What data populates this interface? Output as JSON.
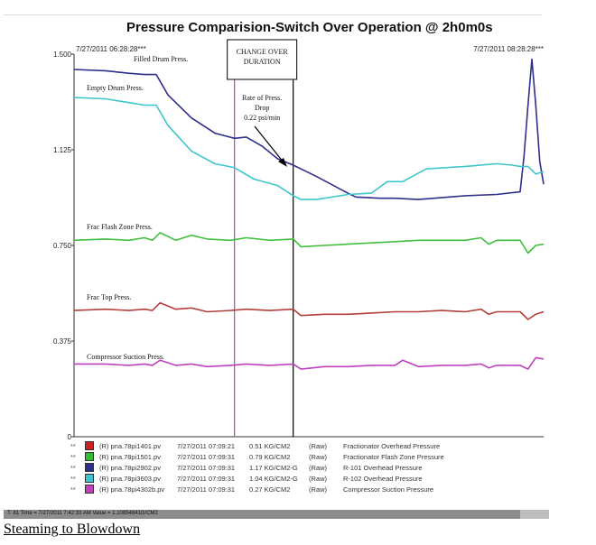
{
  "chart_data": {
    "type": "line",
    "title": "Pressure Comparision-Switch Over Operation  @ 2h0m0s",
    "y_ticks": [
      "1.500",
      "1.125",
      "0.750",
      "0.375",
      "0"
    ],
    "ylim": [
      0,
      1.5
    ],
    "xlim": [
      0,
      120
    ],
    "x_unit": "minutes",
    "grid": false,
    "start_time_label": "7/27/2011  06:28:28***",
    "end_time_label": "7/27/2011  08:28:28***",
    "annotations": {
      "change_over": "CHANGE OVER\nDURATION",
      "rate": "Rate of Press.\nDrop\n0.22 psi/min"
    },
    "vertical_markers": [
      {
        "x": 41,
        "color": "#c040c0"
      },
      {
        "x": 56,
        "color": "#000000"
      }
    ],
    "series": [
      {
        "name": "Filled Drum Press.",
        "color": "#2e2e8c",
        "x": [
          0,
          8,
          14,
          18,
          21,
          24,
          30,
          36,
          41,
          44,
          48,
          52,
          56,
          58,
          62,
          70,
          72,
          78,
          82,
          88,
          92,
          100,
          108,
          114,
          115,
          116,
          117,
          118,
          119,
          120
        ],
        "y": [
          1.44,
          1.435,
          1.425,
          1.42,
          1.42,
          1.34,
          1.25,
          1.19,
          1.17,
          1.175,
          1.14,
          1.09,
          1.065,
          1.05,
          1.02,
          0.955,
          0.94,
          0.935,
          0.935,
          0.93,
          0.935,
          0.945,
          0.95,
          0.96,
          1.1,
          1.3,
          1.48,
          1.3,
          1.08,
          0.99
        ]
      },
      {
        "name": "Empty Drum Press.",
        "color": "#3ec6cc",
        "x": [
          0,
          8,
          14,
          18,
          21,
          24,
          30,
          36,
          41,
          46,
          52,
          56,
          58,
          62,
          70,
          76,
          80,
          84,
          90,
          100,
          108,
          112,
          114,
          116,
          118,
          120
        ],
        "y": [
          1.33,
          1.325,
          1.31,
          1.3,
          1.3,
          1.22,
          1.12,
          1.07,
          1.055,
          1.01,
          0.985,
          0.945,
          0.93,
          0.93,
          0.95,
          0.955,
          1.0,
          1.0,
          1.05,
          1.06,
          1.07,
          1.065,
          1.06,
          1.06,
          1.03,
          1.04
        ]
      },
      {
        "name": "Frac Flash Zone Press.",
        "color": "#3fbf3f",
        "x": [
          0,
          8,
          14,
          18,
          20,
          22,
          26,
          30,
          34,
          40,
          44,
          50,
          56,
          58,
          64,
          70,
          76,
          82,
          88,
          94,
          100,
          104,
          106,
          108,
          110,
          114,
          116,
          118,
          120
        ],
        "y": [
          0.77,
          0.775,
          0.77,
          0.78,
          0.77,
          0.8,
          0.77,
          0.79,
          0.775,
          0.77,
          0.78,
          0.77,
          0.775,
          0.745,
          0.75,
          0.755,
          0.76,
          0.765,
          0.77,
          0.77,
          0.77,
          0.78,
          0.755,
          0.77,
          0.77,
          0.77,
          0.72,
          0.75,
          0.755
        ]
      },
      {
        "name": "Frac Top Press.",
        "color": "#b3403a",
        "x": [
          0,
          8,
          14,
          18,
          20,
          22,
          26,
          30,
          34,
          40,
          44,
          50,
          56,
          58,
          64,
          70,
          76,
          82,
          88,
          94,
          100,
          104,
          106,
          108,
          110,
          114,
          116,
          118,
          120
        ],
        "y": [
          0.495,
          0.5,
          0.495,
          0.5,
          0.495,
          0.525,
          0.5,
          0.505,
          0.49,
          0.495,
          0.5,
          0.495,
          0.5,
          0.475,
          0.48,
          0.48,
          0.485,
          0.49,
          0.49,
          0.495,
          0.49,
          0.5,
          0.48,
          0.49,
          0.49,
          0.49,
          0.46,
          0.48,
          0.49
        ]
      },
      {
        "name": "Compressor Suction Press.",
        "color": "#c040c0",
        "x": [
          0,
          8,
          14,
          18,
          20,
          22,
          26,
          30,
          34,
          40,
          44,
          50,
          56,
          58,
          64,
          70,
          76,
          82,
          84,
          88,
          94,
          100,
          104,
          106,
          108,
          110,
          114,
          116,
          118,
          120
        ],
        "y": [
          0.285,
          0.285,
          0.28,
          0.285,
          0.28,
          0.3,
          0.28,
          0.285,
          0.275,
          0.28,
          0.285,
          0.28,
          0.285,
          0.265,
          0.275,
          0.275,
          0.28,
          0.28,
          0.3,
          0.275,
          0.28,
          0.28,
          0.285,
          0.27,
          0.28,
          0.28,
          0.28,
          0.265,
          0.31,
          0.305
        ]
      }
    ]
  },
  "legend": [
    {
      "stars": "**",
      "color": "#cc2222",
      "tag": "(R) pna.78pi1401.pv",
      "time": "7/27/2011 07:09:21",
      "value": "0.51 KG/CM2",
      "mode": "(Raw)",
      "desc": "Fractionator Overhead Pressure"
    },
    {
      "stars": "**",
      "color": "#33bb33",
      "tag": "(R) pna.78pi1501.pv",
      "time": "7/27/2011 07:09:31",
      "value": "0.79 KG/CM2",
      "mode": "(Raw)",
      "desc": "Fractionator Flash Zone Pressure"
    },
    {
      "stars": "**",
      "color": "#2e2e8c",
      "tag": "(R) pna.78pi2902.pv",
      "time": "7/27/2011 07:09:31",
      "value": "1.17 KG/CM2-G",
      "mode": "(Raw)",
      "desc": "R-101 Overhead Pressure"
    },
    {
      "stars": "**",
      "color": "#3ec6cc",
      "tag": "(R) pna.78pi3603.pv",
      "time": "7/27/2011 07:09:31",
      "value": "1.04 KG/CM2-G",
      "mode": "(Raw)",
      "desc": "R-102 Overhead Pressure"
    },
    {
      "stars": "**",
      "color": "#c040c0",
      "tag": "(R) pna.78pi4302b.pv",
      "time": "7/27/2011 07:09:31",
      "value": "0.27 KG/CM2",
      "mode": "(Raw)",
      "desc": "Compressor Suction Pressure"
    }
  ],
  "status_text": "T: 81 Time = 7/27/2011 7:42:33 AM    Value = 1.10854841G/CM2",
  "caption": "Steaming to Blowdown"
}
